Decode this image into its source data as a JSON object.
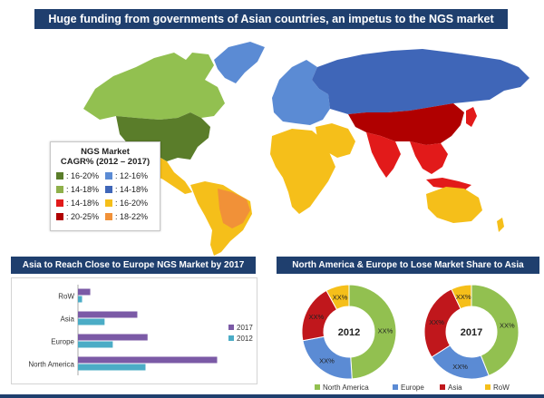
{
  "banner": {
    "title": "Huge funding from governments of Asian countries, an impetus to the NGS market"
  },
  "map_legend": {
    "title_line1": "NGS Market",
    "title_line2": "CAGR% (2012 – 2017)",
    "items": [
      {
        "label": ": 16-20%",
        "color": "#5a7d2a"
      },
      {
        "label": ": 12-16%",
        "color": "#5b8bd4"
      },
      {
        "label": ": 14-18%",
        "color": "#8fb04a"
      },
      {
        "label": ": 14-18%",
        "color": "#3f66b8"
      },
      {
        "label": ": 14-18%",
        "color": "#e21a1a"
      },
      {
        "label": ": 16-20%",
        "color": "#f5bf1a"
      },
      {
        "label": ": 20-25%",
        "color": "#b00000"
      },
      {
        "label": ": 18-22%",
        "color": "#f19138"
      }
    ]
  },
  "bar_section": {
    "title": "Asia to Reach Close to Europe NGS Market  by 2017"
  },
  "donut_section": {
    "title": "North America & Europe to Lose Market Share to Asia"
  },
  "colors": {
    "banner_bg": "#1f3f6e",
    "bar_2017": "#7b5aa6",
    "bar_2012": "#4bacc6",
    "north_america": "#92c050",
    "europe": "#5b8bd4",
    "asia": "#c0171c",
    "row": "#f5bf1a"
  },
  "chart_data": [
    {
      "type": "bar",
      "orientation": "horizontal",
      "title": "Asia to Reach Close to Europe NGS Market  by 2017",
      "categories": [
        "RoW",
        "Asia",
        "Europe",
        "North America"
      ],
      "series": [
        {
          "name": "2017",
          "values": [
            6,
            29,
            34,
            68
          ]
        },
        {
          "name": "2012",
          "values": [
            2,
            13,
            17,
            33
          ]
        }
      ],
      "xlim": [
        0,
        70
      ],
      "grid": false,
      "legend": "right"
    },
    {
      "type": "pie",
      "subtype": "donut",
      "title": "2012",
      "labels": [
        "North America",
        "Europe",
        "Asia",
        "RoW"
      ],
      "values": [
        49,
        23,
        20,
        8
      ],
      "data_labels": [
        "XX%",
        "XX%",
        "XX%",
        "XX%"
      ]
    },
    {
      "type": "pie",
      "subtype": "donut",
      "title": "2017",
      "labels": [
        "North America",
        "Europe",
        "Asia",
        "RoW"
      ],
      "values": [
        44,
        22,
        27,
        7
      ],
      "data_labels": [
        "XX%",
        "XX%",
        "XX%",
        "XX%"
      ]
    }
  ]
}
